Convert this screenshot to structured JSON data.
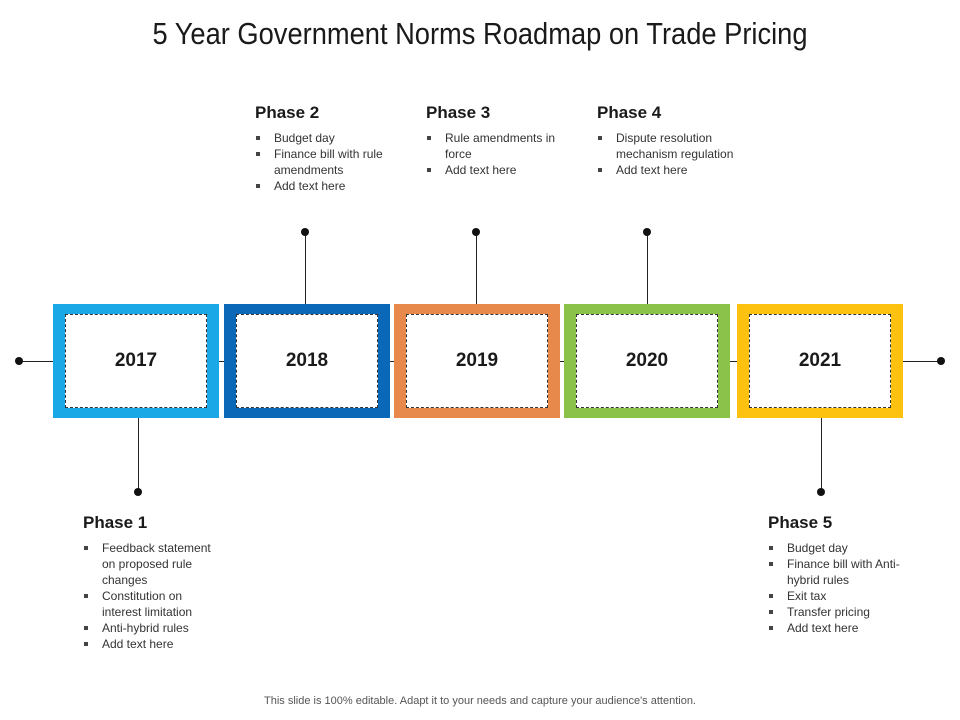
{
  "title": "5 Year Government Norms Roadmap on Trade Pricing",
  "years": [
    {
      "label": "2017",
      "color": "#1aa9e6"
    },
    {
      "label": "2018",
      "color": "#0b68b8"
    },
    {
      "label": "2019",
      "color": "#e6894a"
    },
    {
      "label": "2020",
      "color": "#8bc34a"
    },
    {
      "label": "2021",
      "color": "#fdc20f"
    }
  ],
  "phases": [
    {
      "title": "Phase 1",
      "items": [
        "Feedback statement on proposed rule changes",
        "Constitution on interest limitation",
        "Anti-hybrid rules",
        "Add text here"
      ]
    },
    {
      "title": "Phase 2",
      "items": [
        "Budget day",
        "Finance bill with rule amendments",
        "Add text here"
      ]
    },
    {
      "title": "Phase 3",
      "items": [
        "Rule amendments in force",
        "Add text here"
      ]
    },
    {
      "title": "Phase 4",
      "items": [
        "Dispute resolution mechanism regulation",
        "Add text here"
      ]
    },
    {
      "title": "Phase 5",
      "items": [
        "Budget day",
        "Finance bill with Anti-hybrid rules",
        "Exit tax",
        "Transfer pricing",
        "Add text here"
      ]
    }
  ],
  "footer": "This slide is 100% editable. Adapt it to your needs and capture your audience's attention."
}
